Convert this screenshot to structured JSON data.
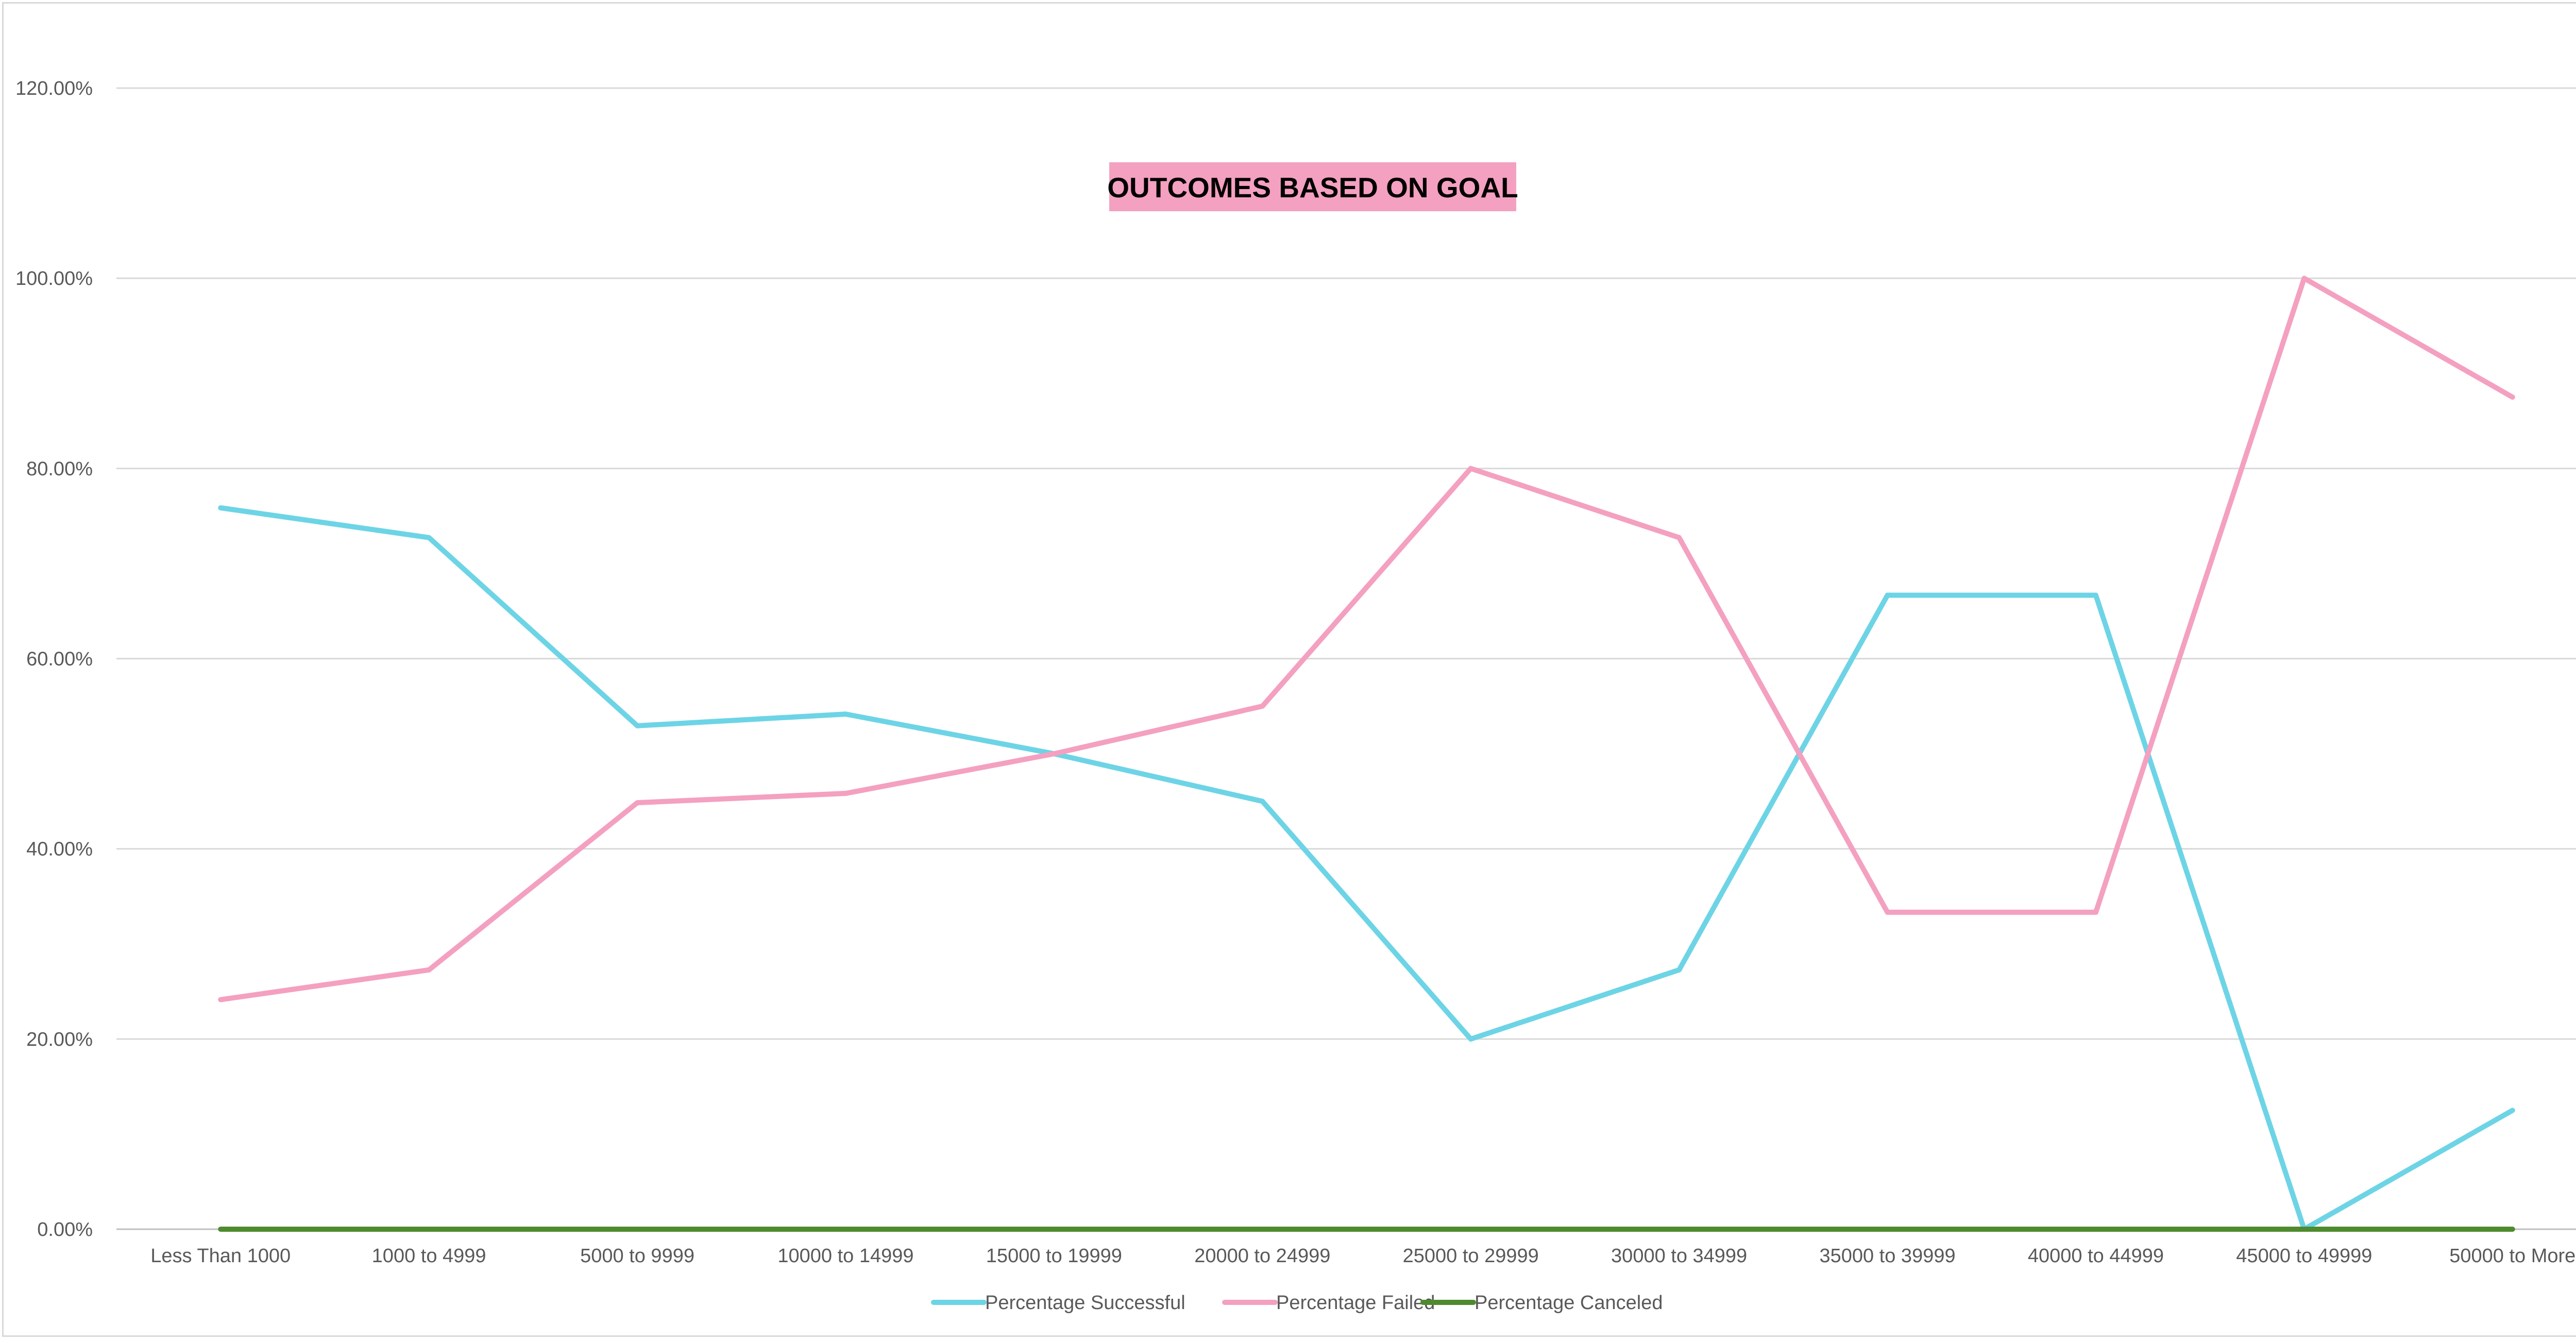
{
  "chart_data": {
    "type": "line",
    "title": "OUTCOMES BASED ON GOAL",
    "xlabel": "",
    "ylabel": "",
    "categories": [
      "Less Than 1000",
      "1000 to 4999",
      "5000 to 9999",
      "10000 to 14999",
      "15000 to 19999",
      "20000 to 24999",
      "25000 to 29999",
      "30000 to 34999",
      "35000 to 39999",
      "40000 to 44999",
      "45000 to 49999",
      "50000 to More"
    ],
    "ylim": [
      0,
      120
    ],
    "yticks": [
      "0.00%",
      "20.00%",
      "40.00%",
      "60.00%",
      "80.00%",
      "100.00%",
      "120.00%"
    ],
    "grid": true,
    "legend_position": "bottom",
    "series": [
      {
        "name": "Percentage Successful",
        "color": "#6dd4e6",
        "values": [
          75.86,
          72.73,
          52.94,
          54.17,
          50.0,
          45.0,
          20.0,
          27.27,
          66.67,
          66.67,
          0.0,
          12.5
        ]
      },
      {
        "name": "Percentage Failed",
        "color": "#f4a0c0",
        "values": [
          24.14,
          27.27,
          44.85,
          45.83,
          50.0,
          55.0,
          80.0,
          72.73,
          33.33,
          33.33,
          100.0,
          87.5
        ]
      },
      {
        "name": "Percentage Canceled",
        "color": "#4e8a2e",
        "values": [
          0,
          0,
          0,
          0,
          0,
          0,
          0,
          0,
          0,
          0,
          0,
          0
        ]
      }
    ],
    "title_background": "#f4a0c0"
  }
}
